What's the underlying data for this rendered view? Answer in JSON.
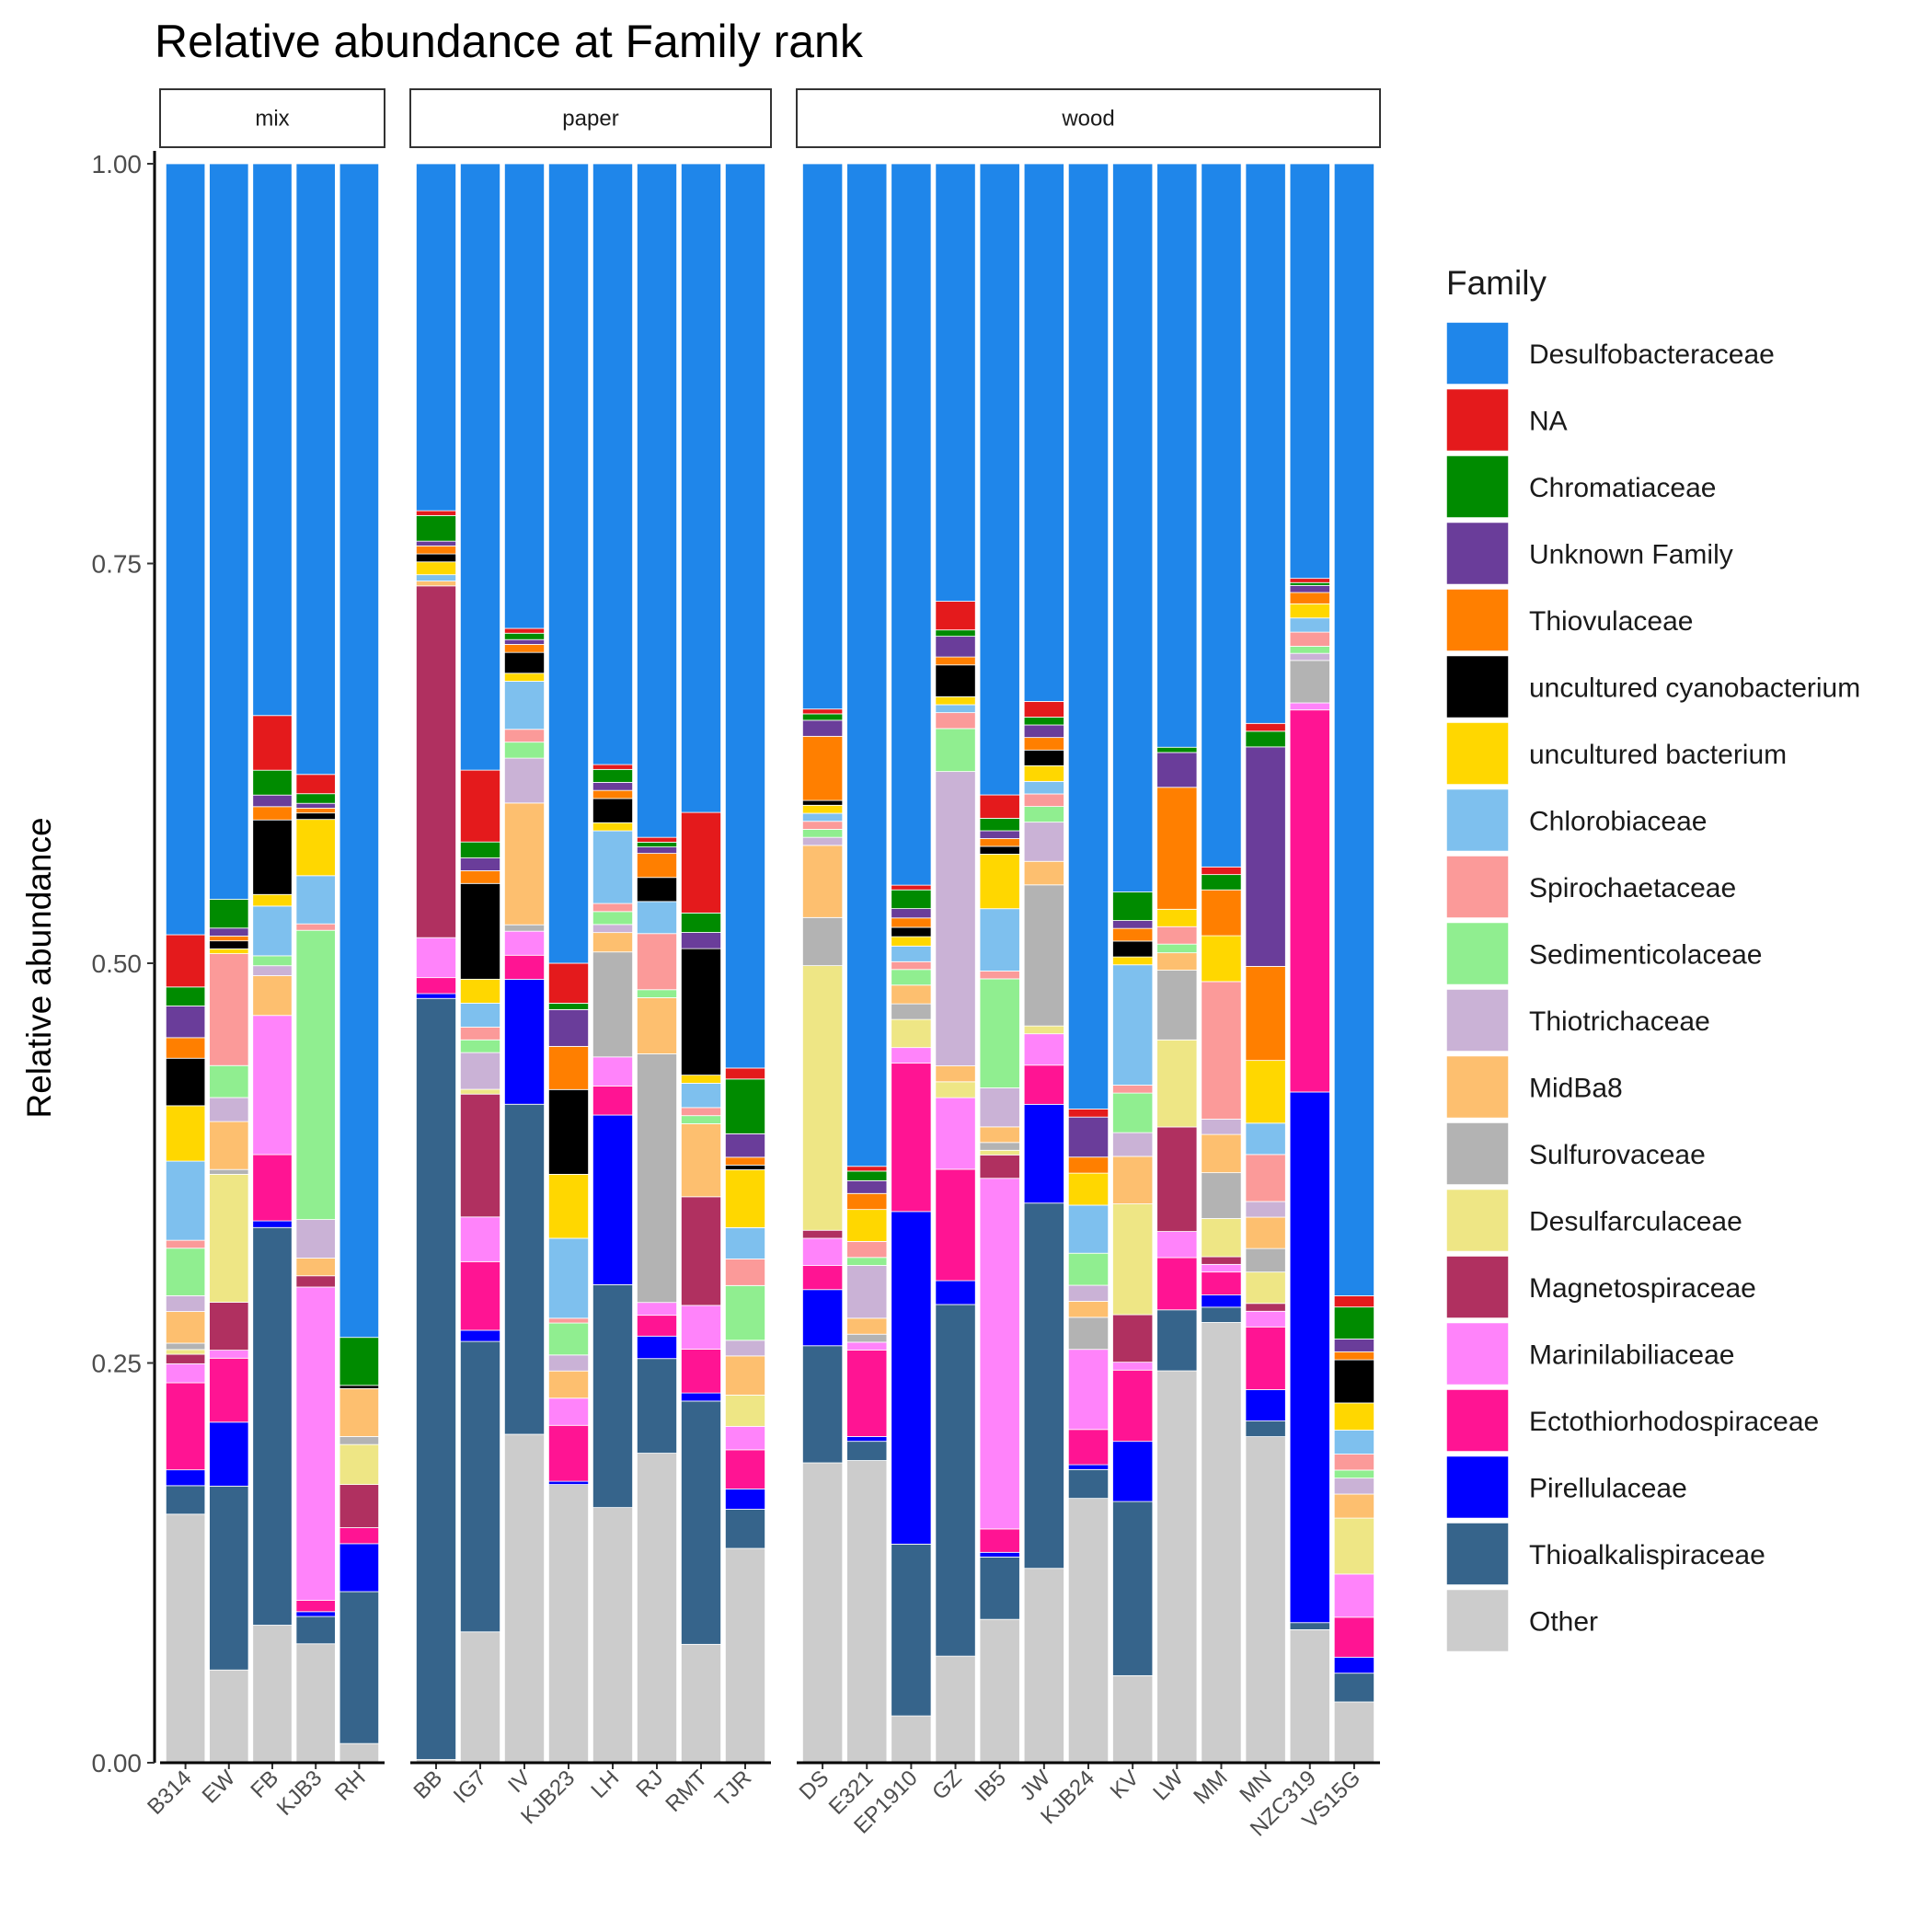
{
  "chart_data": {
    "type": "bar",
    "stacked": true,
    "title": "Relative abundance at Family rank",
    "ylabel": "Relative abundance",
    "xlabel": "",
    "ylim": [
      0,
      1
    ],
    "yticks": [
      "0.00",
      "0.25",
      "0.50",
      "0.75",
      "1.00"
    ],
    "grid": false,
    "legend": {
      "title": "Family",
      "position": "right"
    },
    "families": [
      {
        "name": "Desulfobacteraceae",
        "color": "#1F86EA"
      },
      {
        "name": "NA",
        "color": "#E41A1C"
      },
      {
        "name": "Chromatiaceae",
        "color": "#008B00"
      },
      {
        "name": "Unknown Family",
        "color": "#6A3D9A"
      },
      {
        "name": "Thiovulaceae",
        "color": "#FF7F00"
      },
      {
        "name": "uncultured cyanobacterium",
        "color": "#000000"
      },
      {
        "name": "uncultured bacterium",
        "color": "#FFD700"
      },
      {
        "name": "Chlorobiaceae",
        "color": "#7EC0EE"
      },
      {
        "name": "Spirochaetaceae",
        "color": "#FB9A99"
      },
      {
        "name": "Sedimenticolaceae",
        "color": "#90EE90"
      },
      {
        "name": "Thiotrichaceae",
        "color": "#CAB2D6"
      },
      {
        "name": "MidBa8",
        "color": "#FDBF6F"
      },
      {
        "name": "Sulfurovaceae",
        "color": "#B3B3B3"
      },
      {
        "name": "Desulfarculaceae",
        "color": "#EEE685"
      },
      {
        "name": "Magnetospiraceae",
        "color": "#B03060"
      },
      {
        "name": "Marinilabiliaceae",
        "color": "#FF83FA"
      },
      {
        "name": "Ectothiorhodospiraceae",
        "color": "#FF1493"
      },
      {
        "name": "Pirellulaceae",
        "color": "#0000FF"
      },
      {
        "name": "Thioalkalispiraceae",
        "color": "#36648B"
      },
      {
        "name": "Other",
        "color": "#CCCCCC"
      }
    ],
    "stack_order_bottom_to_top": [
      "Other",
      "Thioalkalispiraceae",
      "Pirellulaceae",
      "Ectothiorhodospiraceae",
      "Marinilabiliaceae",
      "Magnetospiraceae",
      "Desulfarculaceae",
      "Sulfurovaceae",
      "MidBa8",
      "Thiotrichaceae",
      "Sedimenticolaceae",
      "Spirochaetaceae",
      "Chlorobiaceae",
      "uncultured bacterium",
      "uncultured cyanobacterium",
      "Thiovulaceae",
      "Unknown Family",
      "Chromatiaceae",
      "NA",
      "Desulfobacteraceae"
    ],
    "panels": [
      {
        "name": "mix",
        "samples": [
          {
            "sample": "B314",
            "values": [
              0.487,
              0.033,
              0.012,
              0.02,
              0.013,
              0.03,
              0.035,
              0.05,
              0.005,
              0.03,
              0.01,
              0.02,
              0.004,
              0.003,
              0.006,
              0.012,
              0.055,
              0.01,
              0.018,
              0.157
            ]
          },
          {
            "sample": "EW",
            "values": [
              0.46,
              0.0,
              0.018,
              0.005,
              0.003,
              0.005,
              0.003,
              0.0,
              0.07,
              0.02,
              0.015,
              0.03,
              0.003,
              0.08,
              0.03,
              0.005,
              0.04,
              0.04,
              0.115,
              0.058
            ]
          },
          {
            "sample": "FB",
            "values": [
              0.333,
              0.033,
              0.015,
              0.007,
              0.008,
              0.045,
              0.007,
              0.03,
              0.0,
              0.006,
              0.006,
              0.024,
              0.0,
              0.0,
              0.0,
              0.084,
              0.04,
              0.004,
              0.24,
              0.083
            ]
          },
          {
            "sample": "KJB3",
            "values": [
              0.38,
              0.012,
              0.006,
              0.003,
              0.003,
              0.004,
              0.035,
              0.03,
              0.004,
              0.18,
              0.024,
              0.011,
              0.0,
              0.0,
              0.007,
              0.195,
              0.007,
              0.003,
              0.017,
              0.074
            ]
          },
          {
            "sample": "RH",
            "values": [
              0.734,
              0.0,
              0.03,
              0.0,
              0.0,
              0.002,
              0.0,
              0.0,
              0.0,
              0.0,
              0.0,
              0.03,
              0.005,
              0.025,
              0.027,
              0.0,
              0.01,
              0.03,
              0.095,
              0.012
            ]
          }
        ]
      },
      {
        "name": "paper",
        "samples": [
          {
            "sample": "BB",
            "values": [
              0.217,
              0.003,
              0.016,
              0.003,
              0.005,
              0.005,
              0.008,
              0.004,
              0.0,
              0.0,
              0.0,
              0.003,
              0.0,
              0.0,
              0.22,
              0.025,
              0.01,
              0.003,
              0.476,
              0.002
            ]
          },
          {
            "sample": "IG7",
            "values": [
              0.38,
              0.045,
              0.01,
              0.008,
              0.008,
              0.06,
              0.015,
              0.015,
              0.008,
              0.008,
              0.023,
              0.0,
              0.0,
              0.003,
              0.077,
              0.028,
              0.043,
              0.007,
              0.182,
              0.082
            ]
          },
          {
            "sample": "IV",
            "values": [
              0.29,
              0.003,
              0.004,
              0.003,
              0.005,
              0.013,
              0.005,
              0.03,
              0.008,
              0.01,
              0.028,
              0.076,
              0.004,
              0.0,
              0.0,
              0.015,
              0.015,
              0.078,
              0.206,
              0.205
            ]
          },
          {
            "sample": "KJB23",
            "values": [
              0.5,
              0.025,
              0.004,
              0.023,
              0.027,
              0.053,
              0.04,
              0.05,
              0.003,
              0.02,
              0.01,
              0.017,
              0.0,
              0.0,
              0.0,
              0.017,
              0.035,
              0.002,
              0.0,
              0.174
            ]
          },
          {
            "sample": "LH",
            "values": [
              0.372,
              0.003,
              0.008,
              0.005,
              0.005,
              0.015,
              0.005,
              0.045,
              0.005,
              0.008,
              0.005,
              0.012,
              0.065,
              0.0,
              0.0,
              0.018,
              0.018,
              0.105,
              0.138,
              0.158
            ]
          },
          {
            "sample": "RJ",
            "values": [
              0.42,
              0.003,
              0.003,
              0.004,
              0.015,
              0.015,
              0.0,
              0.02,
              0.035,
              0.005,
              0.0,
              0.035,
              0.155,
              0.0,
              0.0,
              0.008,
              0.013,
              0.014,
              0.059,
              0.193
            ]
          },
          {
            "sample": "RMT",
            "values": [
              0.4,
              0.062,
              0.012,
              0.01,
              0.0,
              0.078,
              0.005,
              0.015,
              0.005,
              0.005,
              0.0,
              0.045,
              0.0,
              0.0,
              0.067,
              0.027,
              0.027,
              0.005,
              0.15,
              0.073
            ]
          },
          {
            "sample": "TJR",
            "values": [
              0.578,
              0.007,
              0.035,
              0.015,
              0.005,
              0.003,
              0.037,
              0.02,
              0.017,
              0.035,
              0.01,
              0.025,
              0.0,
              0.02,
              0.0,
              0.015,
              0.025,
              0.013,
              0.025,
              0.137
            ]
          }
        ]
      },
      {
        "name": "wood",
        "samples": [
          {
            "sample": "DS",
            "values": [
              0.34,
              0.003,
              0.004,
              0.01,
              0.04,
              0.003,
              0.005,
              0.005,
              0.005,
              0.005,
              0.005,
              0.045,
              0.03,
              0.165,
              0.005,
              0.017,
              0.015,
              0.035,
              0.073,
              0.187
            ]
          },
          {
            "sample": "E321",
            "values": [
              0.627,
              0.003,
              0.006,
              0.008,
              0.01,
              0.0,
              0.02,
              0.0,
              0.01,
              0.005,
              0.033,
              0.01,
              0.005,
              0.0,
              0.0,
              0.005,
              0.054,
              0.003,
              0.012,
              0.189
            ]
          },
          {
            "sample": "EP1910",
            "values": [
              0.462,
              0.003,
              0.012,
              0.006,
              0.006,
              0.006,
              0.006,
              0.01,
              0.005,
              0.01,
              0.0,
              0.012,
              0.01,
              0.018,
              0.0,
              0.01,
              0.095,
              0.213,
              0.11,
              0.03
            ]
          },
          {
            "sample": "GZ",
            "values": [
              0.275,
              0.018,
              0.004,
              0.013,
              0.005,
              0.02,
              0.005,
              0.005,
              0.01,
              0.027,
              0.185,
              0.01,
              0.0,
              0.01,
              0.0,
              0.045,
              0.07,
              0.015,
              0.221,
              0.067
            ]
          },
          {
            "sample": "IB5",
            "values": [
              0.405,
              0.015,
              0.008,
              0.005,
              0.005,
              0.005,
              0.035,
              0.04,
              0.005,
              0.07,
              0.025,
              0.01,
              0.005,
              0.003,
              0.015,
              0.225,
              0.015,
              0.003,
              0.04,
              0.092
            ]
          },
          {
            "sample": "JW",
            "values": [
              0.343,
              0.01,
              0.005,
              0.008,
              0.008,
              0.01,
              0.01,
              0.008,
              0.008,
              0.01,
              0.025,
              0.015,
              0.09,
              0.005,
              0.0,
              0.02,
              0.025,
              0.063,
              0.233,
              0.124
            ]
          },
          {
            "sample": "KJB24",
            "values": [
              0.59,
              0.005,
              0.0,
              0.025,
              0.01,
              0.0,
              0.02,
              0.03,
              0.0,
              0.02,
              0.01,
              0.01,
              0.02,
              0.0,
              0.0,
              0.05,
              0.022,
              0.003,
              0.018,
              0.165
            ]
          },
          {
            "sample": "KV",
            "values": [
              0.46,
              0.0,
              0.018,
              0.005,
              0.008,
              0.01,
              0.005,
              0.076,
              0.005,
              0.025,
              0.015,
              0.03,
              0.0,
              0.07,
              0.03,
              0.005,
              0.045,
              0.038,
              0.11,
              0.055
            ]
          },
          {
            "sample": "LW",
            "values": [
              0.335,
              0.0,
              0.003,
              0.02,
              0.07,
              0.0,
              0.01,
              0.0,
              0.01,
              0.005,
              0.0,
              0.01,
              0.04,
              0.05,
              0.06,
              0.015,
              0.03,
              0.0,
              0.035,
              0.225
            ]
          },
          {
            "sample": "MM",
            "values": [
              0.46,
              0.005,
              0.01,
              0.0,
              0.03,
              0.0,
              0.03,
              0.0,
              0.09,
              0.0,
              0.01,
              0.025,
              0.03,
              0.025,
              0.005,
              0.005,
              0.015,
              0.008,
              0.01,
              0.288
            ]
          },
          {
            "sample": "MN",
            "values": [
              0.357,
              0.005,
              0.01,
              0.14,
              0.06,
              0.0,
              0.04,
              0.02,
              0.03,
              0.0,
              0.01,
              0.02,
              0.015,
              0.02,
              0.005,
              0.01,
              0.04,
              0.02,
              0.01,
              0.208
            ]
          },
          {
            "sample": "NZC319",
            "values": [
              0.293,
              0.003,
              0.002,
              0.005,
              0.008,
              0.0,
              0.01,
              0.01,
              0.01,
              0.005,
              0.005,
              0.0,
              0.03,
              0.0,
              0.0,
              0.005,
              0.27,
              0.375,
              0.005,
              0.094
            ]
          },
          {
            "sample": "VS15G",
            "values": [
              0.708,
              0.007,
              0.02,
              0.008,
              0.005,
              0.027,
              0.017,
              0.015,
              0.01,
              0.005,
              0.01,
              0.015,
              0.0,
              0.035,
              0.0,
              0.027,
              0.025,
              0.01,
              0.018,
              0.038
            ]
          }
        ]
      }
    ]
  }
}
